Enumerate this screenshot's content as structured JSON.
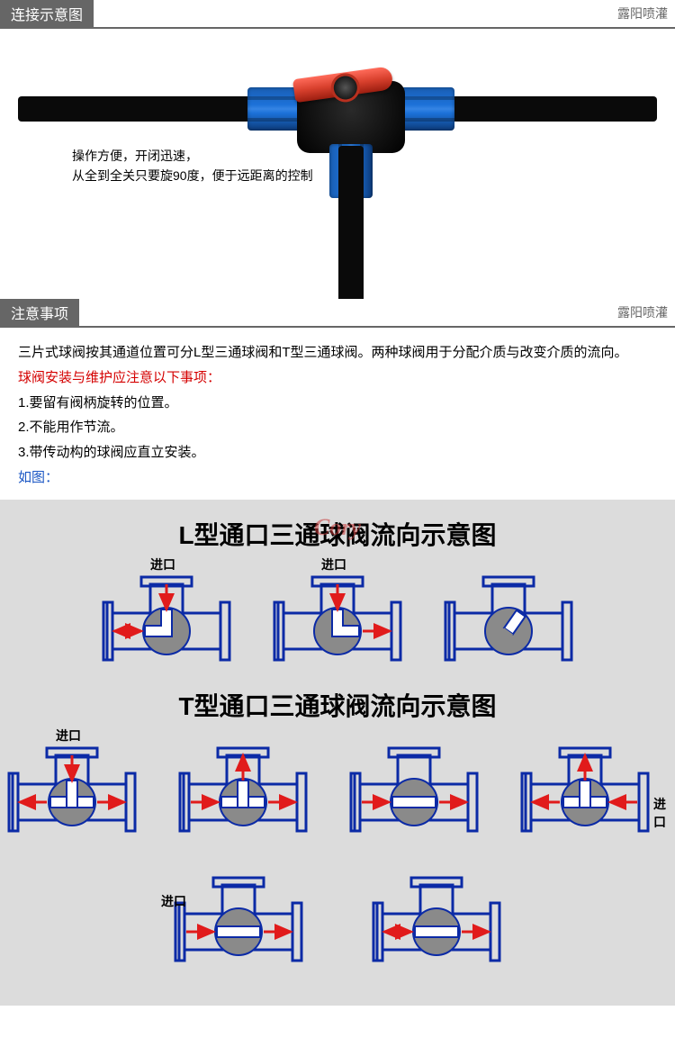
{
  "sections": {
    "connection": {
      "title": "连接示意图",
      "brand": "露阳喷灌"
    },
    "notes": {
      "title": "注意事项",
      "brand": "露阳喷灌"
    }
  },
  "product_caption": {
    "line1": "操作方便，开闭迅速，",
    "line2": "从全到全关只要旋90度，便于远距离的控制"
  },
  "notes_text": {
    "intro": "三片式球阀按其通道位置可分L型三通球阀和T型三通球阀。两种球阀用于分配介质与改变介质的流向。",
    "warn": "球阀安装与维护应注意以下事项：",
    "item1": "1.要留有阀柄旋转的位置。",
    "item2": "2.不能用作节流。",
    "item3": "3.带传动构的球阀应直立安装。",
    "figref": "如图："
  },
  "diagram": {
    "watermark": "Cory",
    "l_title": "L型通口三通球阀流向示意图",
    "t_title": "T型通口三通球阀流向示意图",
    "inlet_label": "进口",
    "colors": {
      "outline": "#0b2aa6",
      "ball_fill": "#8a8a8a",
      "ball_channel": "#ffffff",
      "arrow": "#e11b1b",
      "bg": "#dcdcdc"
    },
    "l_valves": [
      {
        "inlet_top": true,
        "arrows": [
          [
            "top",
            "in"
          ],
          [
            "left",
            "in"
          ],
          [
            "left",
            "out"
          ]
        ],
        "channel": "L-left"
      },
      {
        "inlet_top": true,
        "arrows": [
          [
            "top",
            "in"
          ],
          [
            "right",
            "out"
          ]
        ],
        "channel": "L-right"
      },
      {
        "inlet_top": false,
        "arrows": [],
        "channel": "closed"
      }
    ],
    "t_row1": [
      {
        "inlet_top": true,
        "side_inlet": null,
        "arrows": [
          [
            "top",
            "in"
          ],
          [
            "left",
            "out"
          ],
          [
            "right",
            "out"
          ]
        ],
        "channel": "T"
      },
      {
        "inlet_top": false,
        "side_inlet": null,
        "arrows": [
          [
            "left",
            "in"
          ],
          [
            "top",
            "out"
          ],
          [
            "right",
            "out"
          ]
        ],
        "channel": "T-rot"
      },
      {
        "inlet_top": false,
        "side_inlet": null,
        "arrows": [
          [
            "left",
            "in"
          ],
          [
            "right",
            "out"
          ]
        ],
        "channel": "H"
      },
      {
        "inlet_top": false,
        "side_inlet": "right",
        "arrows": [
          [
            "right",
            "in"
          ],
          [
            "left",
            "out"
          ],
          [
            "top",
            "out"
          ]
        ],
        "channel": "T-rot2"
      }
    ],
    "t_row2": [
      {
        "inlet_top": false,
        "side_inlet": "left",
        "arrows": [
          [
            "left",
            "in"
          ],
          [
            "right",
            "out"
          ]
        ],
        "channel": "H"
      },
      {
        "inlet_top": false,
        "side_inlet": null,
        "arrows": [
          [
            "left",
            "in"
          ],
          [
            "right",
            "out"
          ],
          [
            "left",
            "out"
          ]
        ],
        "channel": "H"
      }
    ]
  }
}
